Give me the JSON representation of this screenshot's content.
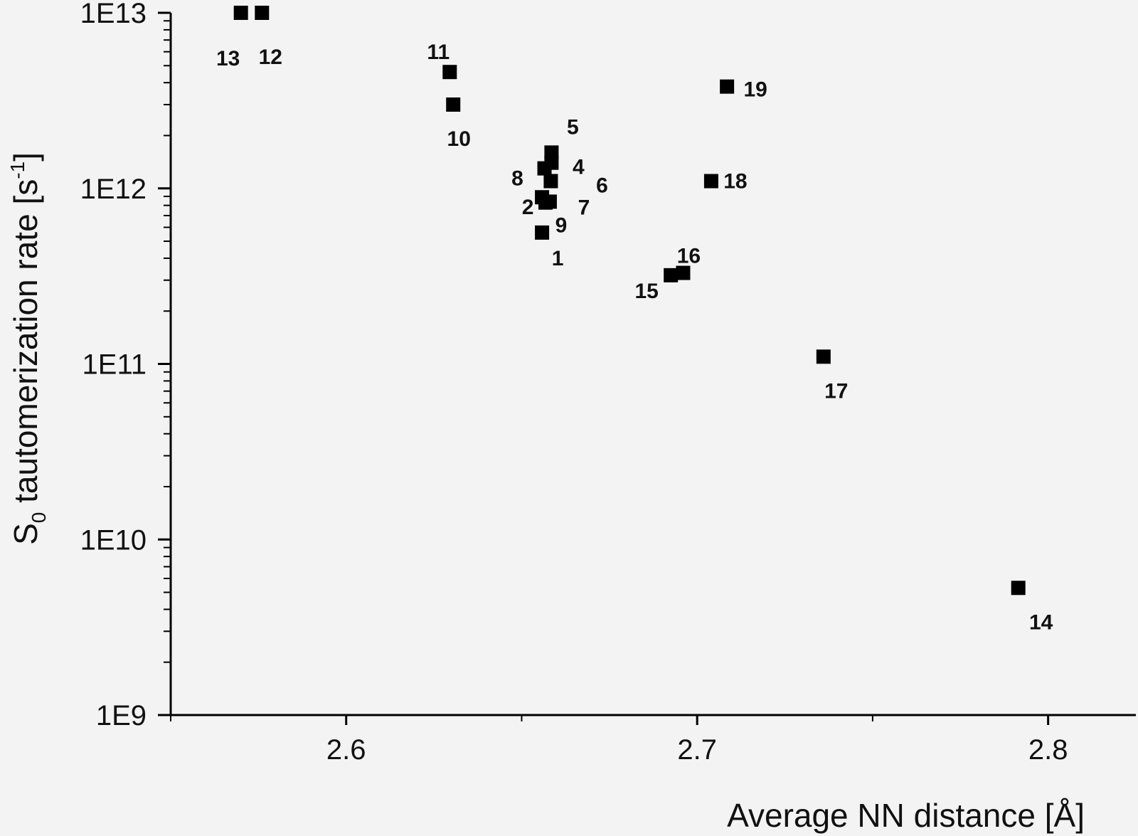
{
  "chart_data": {
    "type": "scatter",
    "xlabel": "Average NN distance [Å]",
    "ylabel": "S₀ tautomerization rate [s⁻¹]",
    "ylabel_parts": {
      "main": "S",
      "sub": "0",
      "rest": " tautomerization rate [s",
      "sup": "-1",
      "end": "]"
    },
    "xlim": [
      2.55,
      2.825
    ],
    "ylim": [
      1000000000.0,
      10000000000000.0
    ],
    "yscale": "log",
    "x_ticks": [
      {
        "value": 2.6,
        "label": "2.6"
      },
      {
        "value": 2.7,
        "label": "2.7"
      },
      {
        "value": 2.8,
        "label": "2.8"
      }
    ],
    "y_ticks": [
      {
        "value": 1000000000.0,
        "label": "1E9"
      },
      {
        "value": 10000000000.0,
        "label": "1E10"
      },
      {
        "value": 100000000000.0,
        "label": "1E11"
      },
      {
        "value": 1000000000000.0,
        "label": "1E12"
      },
      {
        "value": 10000000000000.0,
        "label": "1E13"
      }
    ],
    "grid": false,
    "marker": "square",
    "marker_color": "#000000",
    "points": [
      {
        "label": "1",
        "x": 2.6558,
        "y": 560000000000.0
      },
      {
        "label": "2",
        "x": 2.6558,
        "y": 890000000000.0
      },
      {
        "label": "4",
        "x": 2.6585,
        "y": 1400000000000.0
      },
      {
        "label": "5",
        "x": 2.6585,
        "y": 1600000000000.0
      },
      {
        "label": "6",
        "x": 2.6583,
        "y": 1100000000000.0
      },
      {
        "label": "7",
        "x": 2.658,
        "y": 840000000000.0
      },
      {
        "label": "8",
        "x": 2.6565,
        "y": 1300000000000.0
      },
      {
        "label": "9",
        "x": 2.6568,
        "y": 830000000000.0
      },
      {
        "label": "10",
        "x": 2.6305,
        "y": 3000000000000.0
      },
      {
        "label": "11",
        "x": 2.6295,
        "y": 4600000000000.0
      },
      {
        "label": "12",
        "x": 2.576,
        "y": 10000000000000.0
      },
      {
        "label": "13",
        "x": 2.57,
        "y": 10000000000000.0
      },
      {
        "label": "14",
        "x": 2.7915,
        "y": 5300000000.0
      },
      {
        "label": "15",
        "x": 2.6925,
        "y": 320000000000.0
      },
      {
        "label": "16",
        "x": 2.696,
        "y": 330000000000.0
      },
      {
        "label": "17",
        "x": 2.736,
        "y": 110000000000.0
      },
      {
        "label": "18",
        "x": 2.704,
        "y": 1100000000000.0
      },
      {
        "label": "19",
        "x": 2.7085,
        "y": 3800000000000.0
      }
    ]
  }
}
